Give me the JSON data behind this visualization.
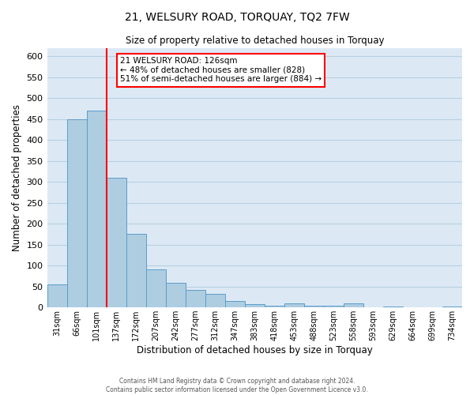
{
  "title": "21, WELSURY ROAD, TORQUAY, TQ2 7FW",
  "subtitle": "Size of property relative to detached houses in Torquay",
  "xlabel": "Distribution of detached houses by size in Torquay",
  "ylabel": "Number of detached properties",
  "bar_color": "#aecde1",
  "bar_edge_color": "#5b9dc9",
  "background_color": "#dce9f5",
  "grid_color": "#b8cfe0",
  "vline_color": "red",
  "vline_x_index": 3,
  "categories": [
    "31sqm",
    "66sqm",
    "101sqm",
    "137sqm",
    "172sqm",
    "207sqm",
    "242sqm",
    "277sqm",
    "312sqm",
    "347sqm",
    "383sqm",
    "418sqm",
    "453sqm",
    "488sqm",
    "523sqm",
    "558sqm",
    "593sqm",
    "629sqm",
    "664sqm",
    "699sqm",
    "734sqm"
  ],
  "values": [
    55,
    450,
    470,
    310,
    175,
    90,
    58,
    42,
    32,
    15,
    8,
    5,
    10,
    5,
    5,
    10,
    0,
    2,
    0,
    0,
    2
  ],
  "ylim": [
    0,
    620
  ],
  "yticks": [
    0,
    50,
    100,
    150,
    200,
    250,
    300,
    350,
    400,
    450,
    500,
    550,
    600
  ],
  "annotation_title": "21 WELSURY ROAD: 126sqm",
  "annotation_line1": "← 48% of detached houses are smaller (828)",
  "annotation_line2": "51% of semi-detached houses are larger (884) →",
  "annotation_box_color": "white",
  "annotation_box_edge": "red",
  "footer1": "Contains HM Land Registry data © Crown copyright and database right 2024.",
  "footer2": "Contains public sector information licensed under the Open Government Licence v3.0."
}
